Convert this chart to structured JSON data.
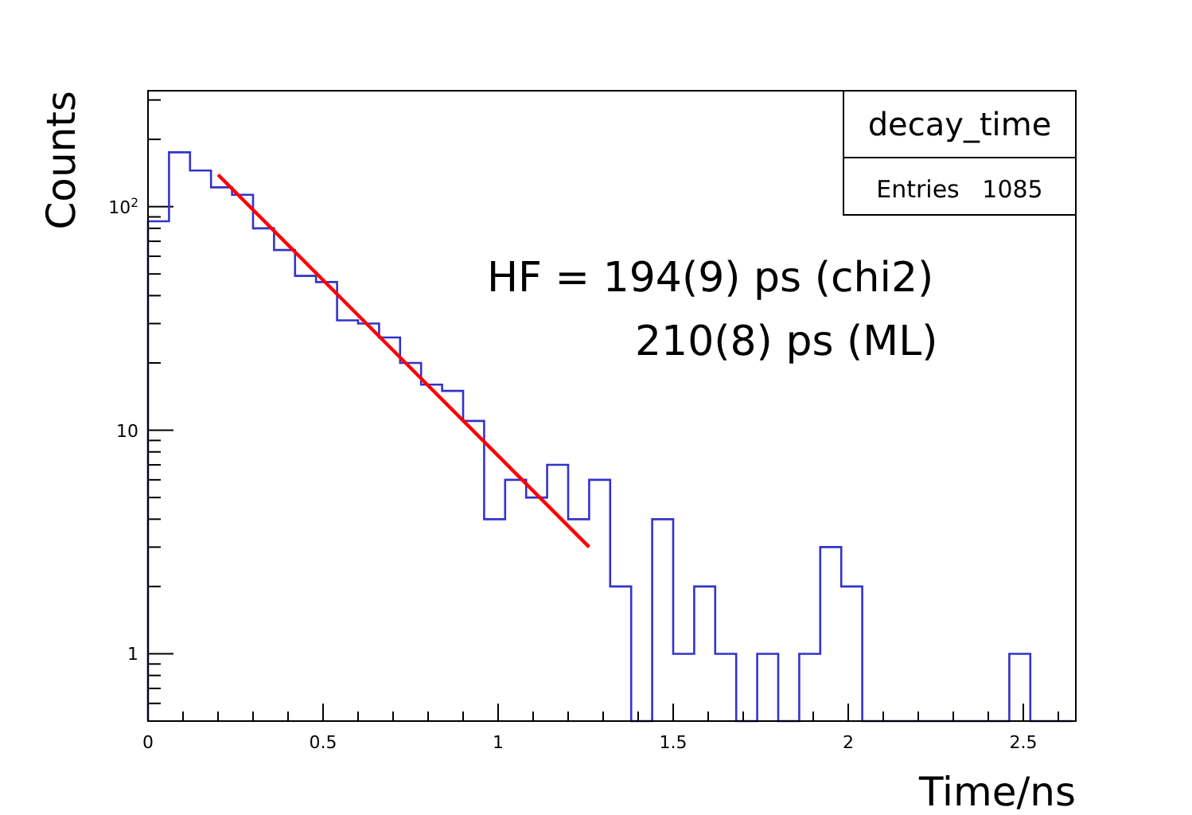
{
  "chart_data": {
    "type": "histogram",
    "xlabel": "Time/ns",
    "ylabel": "Counts",
    "bins": [
      0,
      0.06,
      0.12,
      0.18,
      0.24,
      0.3,
      0.36,
      0.42,
      0.48,
      0.54,
      0.6,
      0.66,
      0.72,
      0.78,
      0.84,
      0.9,
      0.96,
      1.02,
      1.08,
      1.14,
      1.2,
      1.26,
      1.32,
      1.38,
      1.44,
      1.5,
      1.56,
      1.62,
      1.68,
      1.74,
      1.8,
      1.86,
      1.92,
      1.98,
      2.04,
      2.1,
      2.16,
      2.22,
      2.28,
      2.34,
      2.4,
      2.46,
      2.52,
      2.58,
      2.64
    ],
    "values": [
      86,
      175,
      145,
      122,
      113,
      80,
      64,
      49,
      46,
      31,
      30,
      26,
      20,
      16,
      15,
      11,
      4,
      6,
      5,
      7,
      4,
      6,
      2,
      null,
      4,
      1,
      2,
      1,
      null,
      1,
      null,
      1,
      3,
      2,
      null,
      null,
      null,
      null,
      null,
      null,
      null,
      1,
      null,
      null
    ],
    "color": "#3333cc",
    "series": [
      {
        "type": "line",
        "x": [
          0.2,
          1.26
        ],
        "values": [
          139,
          3.0
        ],
        "color": "#ff0000"
      }
    ],
    "log": "y",
    "xlim": [
      0,
      2.65
    ],
    "ylim": [
      0.5,
      330
    ],
    "xticks": [
      0,
      {
        "value": 0.1,
        "label": null
      },
      {
        "value": 0.2,
        "label": null
      },
      {
        "value": 0.3,
        "label": null
      },
      {
        "value": 0.4,
        "label": null
      },
      0.5,
      {
        "value": 0.6,
        "label": null
      },
      {
        "value": 0.7,
        "label": null
      },
      {
        "value": 0.8,
        "label": null
      },
      {
        "value": 0.9,
        "label": null
      },
      1,
      {
        "value": 1.1,
        "label": null
      },
      {
        "value": 1.2,
        "label": null
      },
      {
        "value": 1.3,
        "label": null
      },
      {
        "value": 1.4,
        "label": null
      },
      1.5,
      {
        "value": 1.6,
        "label": null
      },
      {
        "value": 1.7,
        "label": null
      },
      {
        "value": 1.8,
        "label": null
      },
      {
        "value": 1.9,
        "label": null
      },
      2,
      {
        "value": 2.1,
        "label": null
      },
      {
        "value": 2.2,
        "label": null
      },
      {
        "value": 2.3,
        "label": null
      },
      {
        "value": 2.4,
        "label": null
      },
      2.5,
      {
        "value": 2.6,
        "label": null
      }
    ],
    "yticks": [
      {
        "value": 0.6,
        "label": null
      },
      {
        "value": 0.7,
        "label": null
      },
      {
        "value": 0.8,
        "label": null
      },
      {
        "value": 0.9,
        "label": null
      },
      1,
      {
        "value": 2,
        "label": null
      },
      {
        "value": 3,
        "label": null
      },
      {
        "value": 4,
        "label": null
      },
      {
        "value": 5,
        "label": null
      },
      {
        "value": 6,
        "label": null
      },
      {
        "value": 7,
        "label": null
      },
      {
        "value": 8,
        "label": null
      },
      {
        "value": 9,
        "label": null
      },
      10,
      {
        "value": 20,
        "label": null
      },
      {
        "value": 30,
        "label": null
      },
      {
        "value": 40,
        "label": null
      },
      {
        "value": 50,
        "label": null
      },
      {
        "value": 60,
        "label": null
      },
      {
        "value": 70,
        "label": null
      },
      {
        "value": 80,
        "label": null
      },
      {
        "value": 90,
        "label": null
      },
      {
        "value": 100,
        "label": "10$^{2}$"
      },
      {
        "value": 200,
        "label": null
      },
      {
        "value": 300,
        "label": null
      }
    ],
    "annotations": [
      "decay_time",
      "Entries   1085",
      "HF = 194(9) ps (chi2)",
      "210(8) ps (ML)"
    ]
  }
}
